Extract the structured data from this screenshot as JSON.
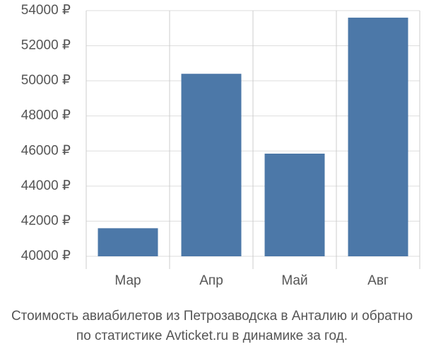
{
  "chart_data": {
    "type": "bar",
    "title": [
      "Стоимость авиабилетов из Петрозаводска в Анталию и обратно",
      "по статистике Avticket.ru в динамике за год."
    ],
    "categories": [
      "Мар",
      "Апр",
      "Май",
      "Авг"
    ],
    "values": [
      41600,
      50400,
      45850,
      53600
    ],
    "color": "#4c78a8",
    "ylim": [
      40000,
      54000
    ],
    "yticks": [
      {
        "value": 40000,
        "label": "40000 ₽"
      },
      {
        "value": 42000,
        "label": "42000 ₽"
      },
      {
        "value": 44000,
        "label": "44000 ₽"
      },
      {
        "value": 46000,
        "label": "46000 ₽"
      },
      {
        "value": 48000,
        "label": "48000 ₽"
      },
      {
        "value": 50000,
        "label": "50000 ₽"
      },
      {
        "value": 52000,
        "label": "52000 ₽"
      },
      {
        "value": 54000,
        "label": "54000 ₽"
      }
    ],
    "grid": true
  }
}
